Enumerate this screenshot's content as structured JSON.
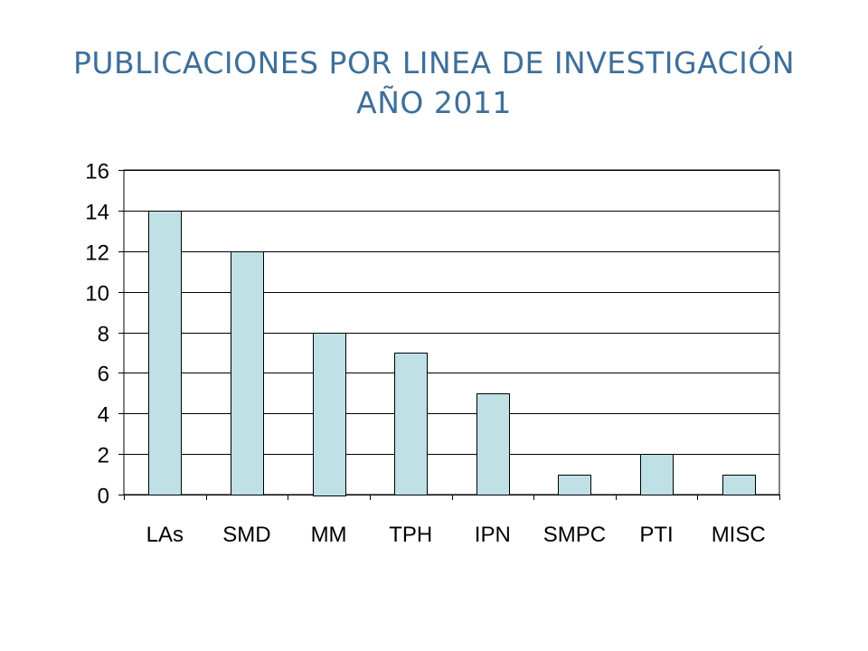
{
  "slide": {
    "title_line1": "PUBLICACIONES POR LINEA DE INVESTIGACIÓN",
    "title_line2": "AÑO 2011"
  },
  "colors": {
    "title": "#3e6f9a",
    "bar_fill": "#bfe0e4",
    "bar_stroke": "#000000",
    "gridline": "#000000"
  },
  "chart_data": {
    "type": "bar",
    "categories": [
      "LAs",
      "SMD",
      "MM",
      "TPH",
      "IPN",
      "SMPC",
      "PTI",
      "MISC"
    ],
    "values": [
      14,
      12,
      8,
      7,
      5,
      1,
      2,
      1
    ],
    "ylim": [
      0,
      16
    ],
    "yticks": [
      0,
      2,
      4,
      6,
      8,
      10,
      12,
      14,
      16
    ],
    "grid": true,
    "legend": "none"
  }
}
